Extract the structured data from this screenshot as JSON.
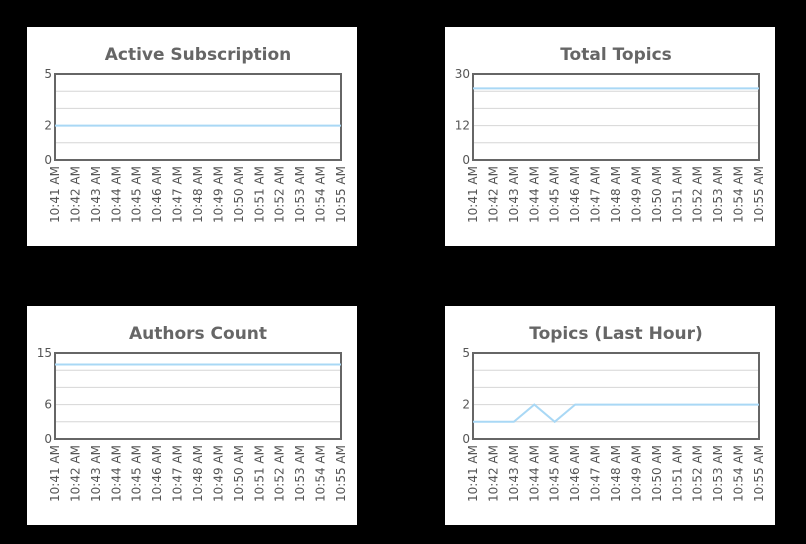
{
  "colors": {
    "background": "#000000",
    "panel": "#ffffff",
    "frame": "#666666",
    "grid": "#d6d6d6",
    "line": "#a9d8f5",
    "text": "#666666"
  },
  "time_labels": [
    "10:41 AM",
    "10:42 AM",
    "10:43 AM",
    "10:44 AM",
    "10:45 AM",
    "10:46 AM",
    "10:47 AM",
    "10:48 AM",
    "10:49 AM",
    "10:50 AM",
    "10:51 AM",
    "10:52 AM",
    "10:53 AM",
    "10:54 AM",
    "10:55 AM"
  ],
  "chart_data": [
    {
      "type": "line",
      "title": "Active Subscription",
      "ylim": [
        0,
        5
      ],
      "yticks": [
        "5",
        "2",
        "0"
      ],
      "grid": true,
      "x": [
        "10:41 AM",
        "10:42 AM",
        "10:43 AM",
        "10:44 AM",
        "10:45 AM",
        "10:46 AM",
        "10:47 AM",
        "10:48 AM",
        "10:49 AM",
        "10:50 AM",
        "10:51 AM",
        "10:52 AM",
        "10:53 AM",
        "10:54 AM",
        "10:55 AM"
      ],
      "values": [
        2,
        2,
        2,
        2,
        2,
        2,
        2,
        2,
        2,
        2,
        2,
        2,
        2,
        2,
        2
      ]
    },
    {
      "type": "line",
      "title": "Total Topics",
      "ylim": [
        0,
        30
      ],
      "yticks": [
        "30",
        "12",
        "0"
      ],
      "grid": true,
      "x": [
        "10:41 AM",
        "10:42 AM",
        "10:43 AM",
        "10:44 AM",
        "10:45 AM",
        "10:46 AM",
        "10:47 AM",
        "10:48 AM",
        "10:49 AM",
        "10:50 AM",
        "10:51 AM",
        "10:52 AM",
        "10:53 AM",
        "10:54 AM",
        "10:55 AM"
      ],
      "values": [
        25,
        25,
        25,
        25,
        25,
        25,
        25,
        25,
        25,
        25,
        25,
        25,
        25,
        25,
        25
      ]
    },
    {
      "type": "line",
      "title": "Authors Count",
      "ylim": [
        0,
        15
      ],
      "yticks": [
        "15",
        "6",
        "0"
      ],
      "grid": true,
      "x": [
        "10:41 AM",
        "10:42 AM",
        "10:43 AM",
        "10:44 AM",
        "10:45 AM",
        "10:46 AM",
        "10:47 AM",
        "10:48 AM",
        "10:49 AM",
        "10:50 AM",
        "10:51 AM",
        "10:52 AM",
        "10:53 AM",
        "10:54 AM",
        "10:55 AM"
      ],
      "values": [
        13,
        13,
        13,
        13,
        13,
        13,
        13,
        13,
        13,
        13,
        13,
        13,
        13,
        13,
        13
      ]
    },
    {
      "type": "line",
      "title": "Topics (Last Hour)",
      "ylim": [
        0,
        5
      ],
      "yticks": [
        "5",
        "2",
        "0"
      ],
      "grid": true,
      "x": [
        "10:41 AM",
        "10:42 AM",
        "10:43 AM",
        "10:44 AM",
        "10:45 AM",
        "10:46 AM",
        "10:47 AM",
        "10:48 AM",
        "10:49 AM",
        "10:50 AM",
        "10:51 AM",
        "10:52 AM",
        "10:53 AM",
        "10:54 AM",
        "10:55 AM"
      ],
      "values": [
        1,
        1,
        1,
        2,
        1,
        2,
        2,
        2,
        2,
        2,
        2,
        2,
        2,
        2,
        2
      ]
    }
  ]
}
